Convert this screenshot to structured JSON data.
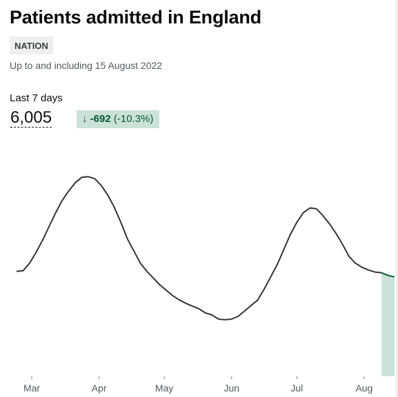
{
  "card": {
    "title": "Patients admitted in England",
    "badge": "NATION",
    "subtitle": "Up to and including 15 August 2022",
    "period_label": "Last 7 days",
    "value": "6,005",
    "change_arrow": "↓",
    "change_value": "-692",
    "change_percent": "(-10.3%)"
  },
  "colors": {
    "line": "#333333",
    "highlight_line": "#005a30",
    "highlight_fill": "#cce2d8",
    "badge_bg": "#eeefef",
    "change_bg": "#cce2d8",
    "change_text": "#005a30"
  },
  "chart_data": {
    "type": "line",
    "title": "",
    "xlabel": "",
    "ylabel": "",
    "x_start": "2022-02-22",
    "x_end": "2022-08-15",
    "xticks": [
      {
        "date": "2022-03-01",
        "label": "Mar"
      },
      {
        "date": "2022-04-01",
        "label": "Apr"
      },
      {
        "date": "2022-05-01",
        "label": "May"
      },
      {
        "date": "2022-06-01",
        "label": "Jun"
      },
      {
        "date": "2022-07-01",
        "label": "Jul"
      },
      {
        "date": "2022-08-01",
        "label": "Aug"
      }
    ],
    "y_axis_visible": false,
    "grid": false,
    "ylim": [
      0,
      17500
    ],
    "highlight": {
      "from": "2022-08-09",
      "to": "2022-08-15",
      "label": "Last 7 days"
    },
    "series": [
      {
        "name": "",
        "points": [
          [
            "2022-02-22",
            7700
          ],
          [
            "2022-02-25",
            7750
          ],
          [
            "2022-02-28",
            8300
          ],
          [
            "2022-03-03",
            9100
          ],
          [
            "2022-03-06",
            10000
          ],
          [
            "2022-03-09",
            11000
          ],
          [
            "2022-03-12",
            12000
          ],
          [
            "2022-03-15",
            12900
          ],
          [
            "2022-03-18",
            13600
          ],
          [
            "2022-03-21",
            14200
          ],
          [
            "2022-03-24",
            14600
          ],
          [
            "2022-03-27",
            14650
          ],
          [
            "2022-03-30",
            14500
          ],
          [
            "2022-04-02",
            14000
          ],
          [
            "2022-04-05",
            13300
          ],
          [
            "2022-04-08",
            12400
          ],
          [
            "2022-04-11",
            11300
          ],
          [
            "2022-04-14",
            10100
          ],
          [
            "2022-04-17",
            9200
          ],
          [
            "2022-04-20",
            8300
          ],
          [
            "2022-04-23",
            7700
          ],
          [
            "2022-04-26",
            7200
          ],
          [
            "2022-04-29",
            6700
          ],
          [
            "2022-05-02",
            6300
          ],
          [
            "2022-05-05",
            5900
          ],
          [
            "2022-05-08",
            5600
          ],
          [
            "2022-05-11",
            5350
          ],
          [
            "2022-05-14",
            5150
          ],
          [
            "2022-05-17",
            4950
          ],
          [
            "2022-05-20",
            4650
          ],
          [
            "2022-05-23",
            4500
          ],
          [
            "2022-05-26",
            4200
          ],
          [
            "2022-05-29",
            4150
          ],
          [
            "2022-06-01",
            4200
          ],
          [
            "2022-06-04",
            4400
          ],
          [
            "2022-06-07",
            4800
          ],
          [
            "2022-06-10",
            5200
          ],
          [
            "2022-06-13",
            5600
          ],
          [
            "2022-06-16",
            6400
          ],
          [
            "2022-06-19",
            7300
          ],
          [
            "2022-06-22",
            8200
          ],
          [
            "2022-06-25",
            9300
          ],
          [
            "2022-06-28",
            10400
          ],
          [
            "2022-07-01",
            11300
          ],
          [
            "2022-07-04",
            12000
          ],
          [
            "2022-07-07",
            12350
          ],
          [
            "2022-07-10",
            12300
          ],
          [
            "2022-07-13",
            11800
          ],
          [
            "2022-07-16",
            11200
          ],
          [
            "2022-07-19",
            10500
          ],
          [
            "2022-07-22",
            9700
          ],
          [
            "2022-07-25",
            8800
          ],
          [
            "2022-07-28",
            8300
          ],
          [
            "2022-07-31",
            8000
          ],
          [
            "2022-08-03",
            7800
          ],
          [
            "2022-08-06",
            7650
          ],
          [
            "2022-08-09",
            7600
          ],
          [
            "2022-08-12",
            7400
          ],
          [
            "2022-08-15",
            7300
          ]
        ]
      }
    ]
  }
}
